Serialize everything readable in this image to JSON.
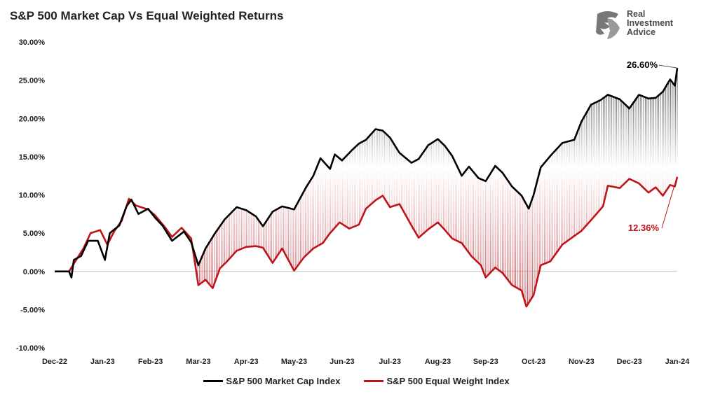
{
  "chart_data": {
    "type": "line",
    "title": "S&P 500 Market Cap Vs Equal Weighted Returns",
    "xlabel": "",
    "ylabel": "",
    "ylim": [
      -10,
      30
    ],
    "y_ticks": [
      "30.00%",
      "25.00%",
      "20.00%",
      "15.00%",
      "10.00%",
      "5.00%",
      "0.00%",
      "-5.00%",
      "-10.00%"
    ],
    "y_tick_values": [
      30,
      25,
      20,
      15,
      10,
      5,
      0,
      -5,
      -10
    ],
    "x_ticks": [
      "Dec-22",
      "Jan-23",
      "Feb-23",
      "Mar-23",
      "Apr-23",
      "May-23",
      "Jun-23",
      "Jul-23",
      "Aug-23",
      "Sep-23",
      "Oct-23",
      "Nov-23",
      "Dec-23",
      "Jan-24"
    ],
    "grid": false,
    "legend_position": "bottom",
    "series": [
      {
        "name": "S&P 500 Market Cap Index",
        "color": "#000000",
        "points": [
          [
            0,
            0
          ],
          [
            0.3,
            0
          ],
          [
            0.35,
            -0.8
          ],
          [
            0.4,
            1.5
          ],
          [
            0.55,
            2
          ],
          [
            0.7,
            4
          ],
          [
            0.9,
            4
          ],
          [
            1.05,
            1.5
          ],
          [
            1.15,
            5
          ],
          [
            1.35,
            6
          ],
          [
            1.5,
            8.5
          ],
          [
            1.6,
            9.4
          ],
          [
            1.75,
            7.5
          ],
          [
            1.95,
            8.2
          ],
          [
            2.1,
            7
          ],
          [
            2.25,
            6
          ],
          [
            2.45,
            4
          ],
          [
            2.7,
            5.2
          ],
          [
            2.85,
            3.8
          ],
          [
            3.0,
            0.8
          ],
          [
            3.15,
            3
          ],
          [
            3.35,
            5
          ],
          [
            3.55,
            6.8
          ],
          [
            3.8,
            8.4
          ],
          [
            4.0,
            8
          ],
          [
            4.2,
            7.2
          ],
          [
            4.35,
            5.9
          ],
          [
            4.55,
            7.8
          ],
          [
            4.75,
            8.5
          ],
          [
            5.0,
            8.1
          ],
          [
            5.25,
            11
          ],
          [
            5.4,
            12.5
          ],
          [
            5.55,
            14.8
          ],
          [
            5.75,
            13.4
          ],
          [
            5.85,
            15.3
          ],
          [
            6.0,
            14.5
          ],
          [
            6.2,
            15.8
          ],
          [
            6.35,
            16.7
          ],
          [
            6.5,
            17.2
          ],
          [
            6.7,
            18.6
          ],
          [
            6.85,
            18.4
          ],
          [
            7.0,
            17.5
          ],
          [
            7.2,
            15.5
          ],
          [
            7.45,
            14.2
          ],
          [
            7.6,
            14.7
          ],
          [
            7.8,
            16.5
          ],
          [
            8.0,
            17.3
          ],
          [
            8.15,
            16.4
          ],
          [
            8.3,
            15.1
          ],
          [
            8.5,
            12.5
          ],
          [
            8.65,
            13.7
          ],
          [
            8.85,
            12.2
          ],
          [
            9.0,
            11.8
          ],
          [
            9.2,
            13.8
          ],
          [
            9.35,
            12.9
          ],
          [
            9.55,
            11.1
          ],
          [
            9.75,
            9.9
          ],
          [
            9.9,
            8.2
          ],
          [
            10.0,
            10
          ],
          [
            10.15,
            13.6
          ],
          [
            10.35,
            15.1
          ],
          [
            10.6,
            16.8
          ],
          [
            10.85,
            17.2
          ],
          [
            11.0,
            19.6
          ],
          [
            11.2,
            21.8
          ],
          [
            11.4,
            22.4
          ],
          [
            11.55,
            23.1
          ],
          [
            11.8,
            22.5
          ],
          [
            12.0,
            21.3
          ],
          [
            12.2,
            23.1
          ],
          [
            12.4,
            22.6
          ],
          [
            12.55,
            22.7
          ],
          [
            12.7,
            23.5
          ],
          [
            12.85,
            25.1
          ],
          [
            12.95,
            24.3
          ],
          [
            13.0,
            26.6
          ]
        ]
      },
      {
        "name": "S&P 500 Equal Weight Index",
        "color": "#c0141c",
        "points": [
          [
            0,
            0
          ],
          [
            0.3,
            0
          ],
          [
            0.45,
            1.5
          ],
          [
            0.6,
            3
          ],
          [
            0.75,
            5
          ],
          [
            0.95,
            5.4
          ],
          [
            1.1,
            3.5
          ],
          [
            1.25,
            5.3
          ],
          [
            1.4,
            6.6
          ],
          [
            1.55,
            9.5
          ],
          [
            1.7,
            8.6
          ],
          [
            1.95,
            8.1
          ],
          [
            2.1,
            7.3
          ],
          [
            2.3,
            5.8
          ],
          [
            2.45,
            4.5
          ],
          [
            2.65,
            5.7
          ],
          [
            2.85,
            4.3
          ],
          [
            3.0,
            -1.8
          ],
          [
            3.15,
            -1.1
          ],
          [
            3.3,
            -2.2
          ],
          [
            3.45,
            0.4
          ],
          [
            3.6,
            1.3
          ],
          [
            3.8,
            2.7
          ],
          [
            4.0,
            3.2
          ],
          [
            4.2,
            3.3
          ],
          [
            4.35,
            3.1
          ],
          [
            4.55,
            1.1
          ],
          [
            4.75,
            3
          ],
          [
            5.0,
            0.1
          ],
          [
            5.2,
            1.8
          ],
          [
            5.4,
            3
          ],
          [
            5.6,
            3.7
          ],
          [
            5.75,
            5
          ],
          [
            5.95,
            6.4
          ],
          [
            6.15,
            5.6
          ],
          [
            6.35,
            6.1
          ],
          [
            6.5,
            8.2
          ],
          [
            6.7,
            9.3
          ],
          [
            6.85,
            9.9
          ],
          [
            7.0,
            8.4
          ],
          [
            7.2,
            8.8
          ],
          [
            7.45,
            6
          ],
          [
            7.6,
            4.4
          ],
          [
            7.8,
            5.5
          ],
          [
            8.0,
            6.4
          ],
          [
            8.15,
            5.4
          ],
          [
            8.3,
            4.3
          ],
          [
            8.5,
            3.7
          ],
          [
            8.7,
            2
          ],
          [
            8.9,
            0.8
          ],
          [
            9.0,
            -0.8
          ],
          [
            9.2,
            0.5
          ],
          [
            9.35,
            -0.2
          ],
          [
            9.55,
            -1.8
          ],
          [
            9.75,
            -2.5
          ],
          [
            9.85,
            -4.6
          ],
          [
            10.0,
            -3.1
          ],
          [
            10.15,
            0.8
          ],
          [
            10.35,
            1.3
          ],
          [
            10.6,
            3.5
          ],
          [
            10.8,
            4.4
          ],
          [
            11.0,
            5.3
          ],
          [
            11.2,
            6.7
          ],
          [
            11.45,
            8.5
          ],
          [
            11.55,
            11.2
          ],
          [
            11.8,
            10.9
          ],
          [
            12.0,
            12.1
          ],
          [
            12.2,
            11.5
          ],
          [
            12.4,
            10.3
          ],
          [
            12.55,
            11
          ],
          [
            12.7,
            9.9
          ],
          [
            12.85,
            11.3
          ],
          [
            12.95,
            11.1
          ],
          [
            13.0,
            12.36
          ]
        ]
      }
    ],
    "annotations": [
      {
        "text": "26.60%",
        "color": "#000000"
      },
      {
        "text": "12.36%",
        "color": "#c0141c"
      }
    ]
  },
  "logo": {
    "line1": "Real",
    "line2": "Investment",
    "line3": "Advice"
  }
}
